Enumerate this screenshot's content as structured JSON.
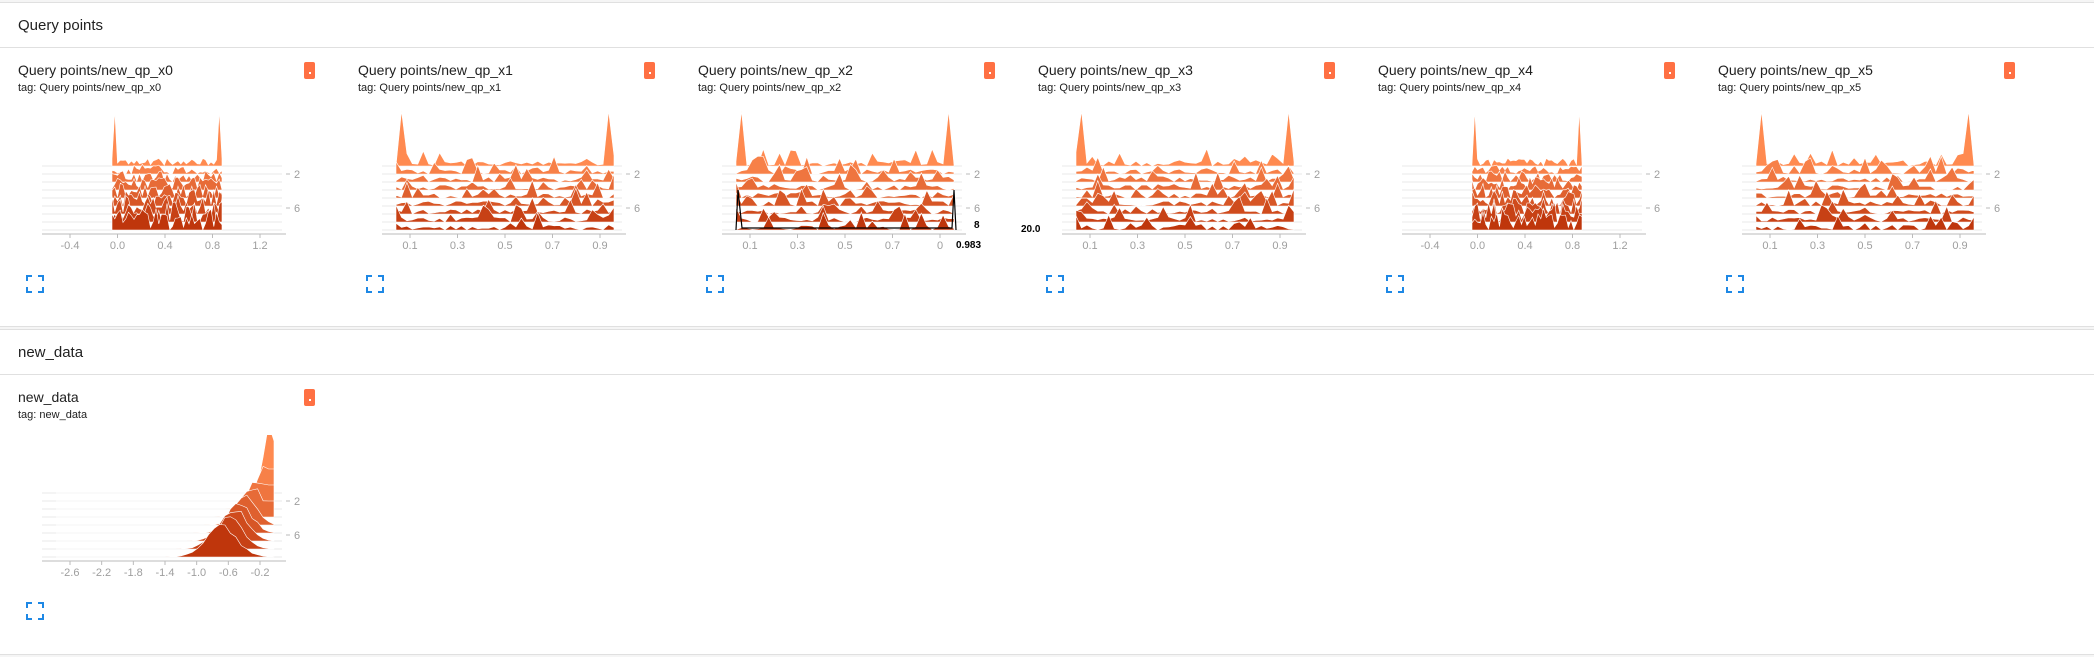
{
  "sections": [
    {
      "title": "Query points",
      "cards": [
        {
          "title": "Query points/new_qp_x0",
          "tag": "tag: Query points/new_qp_x0",
          "x_ticks": [
            "-0.4",
            "0.0",
            "0.4",
            "0.8",
            "1.2"
          ],
          "y_ticks": [
            "2",
            "6"
          ]
        },
        {
          "title": "Query points/new_qp_x1",
          "tag": "tag: Query points/new_qp_x1",
          "x_ticks": [
            "0.1",
            "0.3",
            "0.5",
            "0.7",
            "0.9"
          ],
          "y_ticks": [
            "2",
            "6"
          ]
        },
        {
          "title": "Query points/new_qp_x2",
          "tag": "tag: Query points/new_qp_x2",
          "x_ticks": [
            "0.1",
            "0.3",
            "0.5",
            "0.7",
            "0"
          ],
          "y_ticks": [
            "2",
            "6"
          ],
          "hover_step": "8",
          "hover_value": "0.983"
        },
        {
          "title": "Query points/new_qp_x3",
          "tag": "tag: Query points/new_qp_x3",
          "x_ticks": [
            "0.1",
            "0.3",
            "0.5",
            "0.7",
            "0.9"
          ],
          "y_ticks": [
            "2",
            "6"
          ],
          "hover_count": "20.0"
        },
        {
          "title": "Query points/new_qp_x4",
          "tag": "tag: Query points/new_qp_x4",
          "x_ticks": [
            "-0.4",
            "0.0",
            "0.4",
            "0.8",
            "1.2"
          ],
          "y_ticks": [
            "2",
            "6"
          ]
        },
        {
          "title": "Query points/new_qp_x5",
          "tag": "tag: Query points/new_qp_x5",
          "x_ticks": [
            "0.1",
            "0.3",
            "0.5",
            "0.7",
            "0.9"
          ],
          "y_ticks": [
            "2",
            "6"
          ]
        }
      ]
    },
    {
      "title": "new_data",
      "cards": [
        {
          "title": "new_data",
          "tag": "tag: new_data",
          "x_ticks": [
            "-2.6",
            "-2.2",
            "-1.8",
            "-1.4",
            "-1.0",
            "-0.6",
            "-0.2"
          ],
          "y_ticks": [
            "2",
            "6"
          ]
        }
      ]
    }
  ],
  "colors": {
    "accent": "#ff7043",
    "ridge_light": "#ff8a50",
    "ridge_dark": "#bf360c",
    "expand_icon": "#1e88e5"
  }
}
